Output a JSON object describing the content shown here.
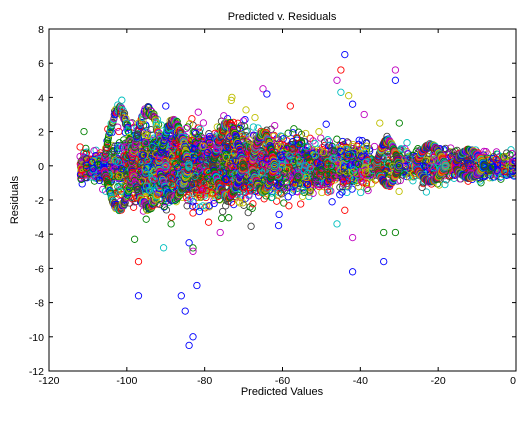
{
  "chart_data": {
    "type": "scatter",
    "title": "Predicted v. Residuals",
    "xlabel": "Predicted Values",
    "ylabel": "Residuals",
    "xlim": [
      -120,
      0
    ],
    "ylim": [
      -12,
      8
    ],
    "xticks": [
      -120,
      -100,
      -80,
      -60,
      -40,
      -20,
      0
    ],
    "yticks": [
      -12,
      -10,
      -8,
      -6,
      -4,
      -2,
      0,
      2,
      4,
      6,
      8
    ],
    "xtick_labels": [
      "-120",
      "-100",
      "-80",
      "-60",
      "-40",
      "-20",
      "0"
    ],
    "ytick_labels": [
      "-12",
      "-10",
      "-8",
      "-6",
      "-4",
      "-2",
      "0",
      "2",
      "4",
      "6",
      "8"
    ],
    "grid": false,
    "marker": "open-circle",
    "series_colors": [
      "#0000ff",
      "#008000",
      "#ff0000",
      "#00bfbf",
      "#bf00bf",
      "#bfbf00",
      "#404040"
    ],
    "notable_points": [
      {
        "x": -44,
        "y": 6.5,
        "color": "#0000ff"
      },
      {
        "x": -45,
        "y": 5.6,
        "color": "#ff0000"
      },
      {
        "x": -46,
        "y": 5.0,
        "color": "#bf00bf"
      },
      {
        "x": -31,
        "y": 5.6,
        "color": "#bf00bf"
      },
      {
        "x": -31,
        "y": 5.0,
        "color": "#0000ff"
      },
      {
        "x": -65,
        "y": 4.5,
        "color": "#bf00bf"
      },
      {
        "x": -64,
        "y": 4.2,
        "color": "#0000ff"
      },
      {
        "x": -73,
        "y": 4.0,
        "color": "#bfbf00"
      },
      {
        "x": -90,
        "y": 3.5,
        "color": "#0000ff"
      },
      {
        "x": -58,
        "y": 3.5,
        "color": "#ff0000"
      },
      {
        "x": -45,
        "y": 4.3,
        "color": "#00bfbf"
      },
      {
        "x": -43,
        "y": 4.1,
        "color": "#bfbf00"
      },
      {
        "x": -111,
        "y": 2.0,
        "color": "#008000"
      },
      {
        "x": -112,
        "y": 1.1,
        "color": "#ff0000"
      },
      {
        "x": -30,
        "y": 2.5,
        "color": "#008000"
      },
      {
        "x": -35,
        "y": 2.5,
        "color": "#bfbf00"
      },
      {
        "x": -42,
        "y": 3.6,
        "color": "#0000ff"
      },
      {
        "x": -39,
        "y": 3.0,
        "color": "#bf00bf"
      },
      {
        "x": -98,
        "y": -4.3,
        "color": "#008000"
      },
      {
        "x": -97,
        "y": -5.6,
        "color": "#ff0000"
      },
      {
        "x": -97,
        "y": -7.6,
        "color": "#0000ff"
      },
      {
        "x": -86,
        "y": -7.6,
        "color": "#0000ff"
      },
      {
        "x": -85,
        "y": -8.5,
        "color": "#0000ff"
      },
      {
        "x": -84,
        "y": -4.5,
        "color": "#0000ff"
      },
      {
        "x": -83,
        "y": -4.8,
        "color": "#008000"
      },
      {
        "x": -83,
        "y": -5.0,
        "color": "#bf00bf"
      },
      {
        "x": -82,
        "y": -7.0,
        "color": "#0000ff"
      },
      {
        "x": -83,
        "y": -10.0,
        "color": "#0000ff"
      },
      {
        "x": -84,
        "y": -10.5,
        "color": "#0000ff"
      },
      {
        "x": -76,
        "y": -3.9,
        "color": "#bf00bf"
      },
      {
        "x": -79,
        "y": -3.3,
        "color": "#ff0000"
      },
      {
        "x": -61,
        "y": -3.5,
        "color": "#0000ff"
      },
      {
        "x": -46,
        "y": -3.4,
        "color": "#00bfbf"
      },
      {
        "x": -42,
        "y": -4.2,
        "color": "#bf00bf"
      },
      {
        "x": -42,
        "y": -6.2,
        "color": "#0000ff"
      },
      {
        "x": -34,
        "y": -3.9,
        "color": "#008000"
      },
      {
        "x": -31,
        "y": -3.9,
        "color": "#008000"
      },
      {
        "x": -34,
        "y": -5.6,
        "color": "#0000ff"
      },
      {
        "x": -44,
        "y": -2.6,
        "color": "#ff0000"
      }
    ],
    "bulk_description": "thousands of overlapping multi-colored open circles forming a band centered near residual 0; band spans about -2.5..3.5 for predicted -100..-70, narrowing toward about -1.3..1.5 near 0"
  }
}
